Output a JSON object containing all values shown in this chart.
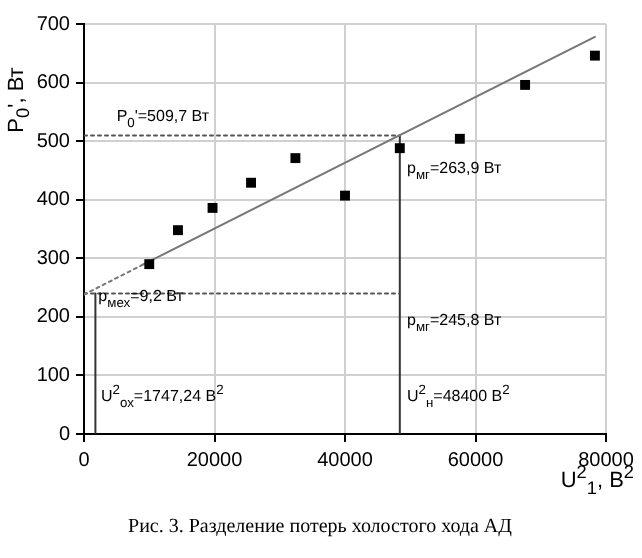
{
  "chart_data": {
    "type": "scatter",
    "ylabel": "P$_{0}$', Вт",
    "xlabel": "U$^{2}$$_{1}$, В$^{2}$",
    "xlim": [
      0,
      80000
    ],
    "xticks": [
      0,
      20000,
      40000,
      60000,
      80000
    ],
    "ylim": [
      0,
      700
    ],
    "yticks": [
      0,
      100,
      200,
      300,
      400,
      500,
      600,
      700
    ],
    "grid": true,
    "legend": false,
    "marker": "square",
    "series": [
      {
        "color": "#000000",
        "x": [
          10000,
          14400,
          19700,
          25600,
          32400,
          40000,
          48400,
          57600,
          67600,
          78300
        ],
        "values": [
          290,
          348,
          386,
          429,
          471,
          407,
          488,
          504,
          596,
          646
        ]
      },
      {
        "type": "line",
        "color": "#777777",
        "marker": "none",
        "line_style": "dotted",
        "x": [
          0,
          9000
        ],
        "values": [
          238,
          289
        ]
      },
      {
        "type": "line",
        "color": "#777777",
        "marker": "none",
        "line_style": "solid",
        "x": [
          9000,
          78300
        ],
        "values": [
          289,
          678
        ]
      },
      {
        "type": "line",
        "color": "#555555",
        "marker": "none",
        "line_style": "dotted",
        "x": [
          0,
          48400
        ],
        "values": [
          509.7,
          509.7
        ]
      },
      {
        "type": "line",
        "color": "#555555",
        "marker": "none",
        "line_style": "dotted",
        "x": [
          0,
          48400
        ],
        "values": [
          240,
          240
        ]
      },
      {
        "type": "line",
        "color": "#333333",
        "marker": "none",
        "line_style": "solid",
        "x": [
          1747.24,
          1747.24
        ],
        "values": [
          0,
          240
        ]
      },
      {
        "type": "line",
        "color": "#333333",
        "marker": "none",
        "line_style": "solid",
        "x": [
          48400,
          48400
        ],
        "values": [
          0,
          509.7
        ]
      }
    ],
    "annotations": [
      {
        "text": "P$_{0}$'=509,7 Вт",
        "x": 5000,
        "y": 509.7
      },
      {
        "text": "p$_{мг}$=263,9 Вт",
        "x": 49500,
        "y": 420
      },
      {
        "text": "p$_{мех}$=9,2 Вт",
        "x": 2200,
        "y": 200
      },
      {
        "text": "p$_{мг}$=245,8 Вт",
        "x": 49500,
        "y": 162
      },
      {
        "text": "U$^{2}$$_{ох}$=1747,24 В$^{2}$",
        "x": 2600,
        "y": 32
      },
      {
        "text": "U$^{2}$$_{н}$=48400 В$^{2}$",
        "x": 49500,
        "y": 32
      },
      "Рис. 3. Разделение потерь холостого хода АД"
    ]
  }
}
